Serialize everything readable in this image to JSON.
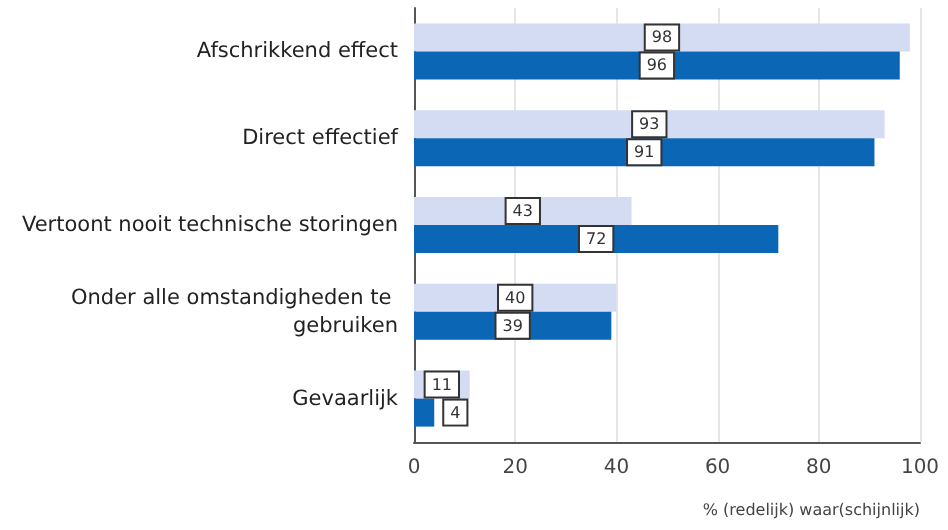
{
  "chart_data": {
    "type": "bar",
    "orientation": "horizontal",
    "xlabel": "% (redelijk) waar(schijnlijk)",
    "categories": [
      "Afschrikkend effect",
      "Direct effectief",
      "Vertoont nooit technische storingen",
      "Onder alle omstandigheden te gebruiken",
      "Gevaarlijk"
    ],
    "series": [
      {
        "color": "#d3dcf2",
        "values": [
          98,
          93,
          43,
          40,
          11
        ]
      },
      {
        "color": "#0b66b5",
        "values": [
          96,
          91,
          72,
          39,
          4
        ]
      }
    ],
    "xlim": [
      0,
      100
    ],
    "xticks": [
      0,
      20,
      40,
      60,
      80,
      100
    ],
    "grid": "x",
    "data_labels": true
  }
}
